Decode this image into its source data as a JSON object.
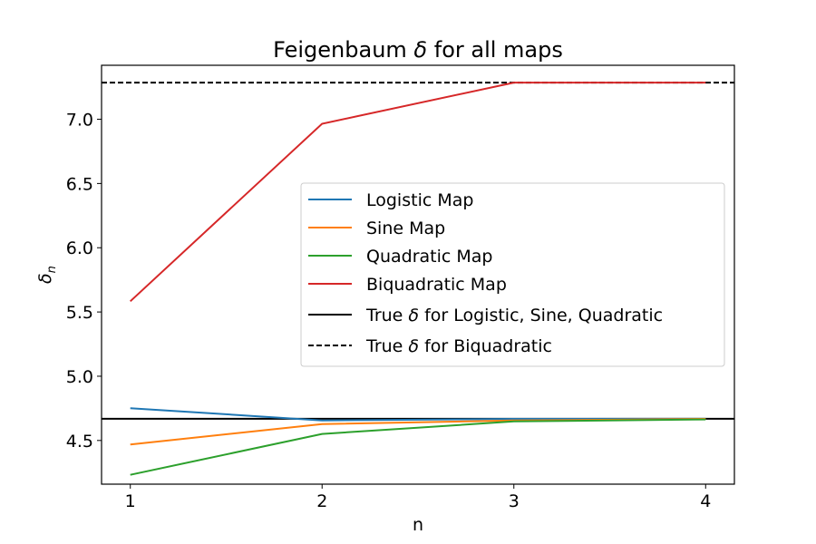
{
  "chart_data": {
    "type": "line",
    "title_pre": "Feigenbaum ",
    "title_sym": "δ",
    "title_post": " for all maps",
    "xlabel": "n",
    "ylabel_sym": "δ",
    "ylabel_sub": "n",
    "xlim": [
      0.85,
      4.15
    ],
    "ylim": [
      4.16,
      7.42
    ],
    "x_ticks": [
      1,
      2,
      3,
      4
    ],
    "x_tick_labels": [
      "1",
      "2",
      "3",
      "4"
    ],
    "y_ticks": [
      4.5,
      5.0,
      5.5,
      6.0,
      6.5,
      7.0
    ],
    "y_tick_labels": [
      "4.5",
      "5.0",
      "5.5",
      "6.0",
      "6.5",
      "7.0"
    ],
    "grid": false,
    "legend_position": "center-right",
    "x": [
      1,
      2,
      3,
      4
    ],
    "series": [
      {
        "name": "Logistic Map",
        "color": "#1f77b4",
        "values": [
          4.751,
          4.656,
          4.668,
          4.669
        ]
      },
      {
        "name": "Sine Map",
        "color": "#ff7f0e",
        "values": [
          4.469,
          4.627,
          4.655,
          4.668
        ]
      },
      {
        "name": "Quadratic Map",
        "color": "#2ca02c",
        "values": [
          4.233,
          4.551,
          4.648,
          4.664
        ]
      },
      {
        "name": "Biquadratic Map",
        "color": "#d62728",
        "values": [
          5.583,
          6.965,
          7.285,
          7.285
        ]
      }
    ],
    "reference_lines": [
      {
        "legend_pre": "True ",
        "legend_sym": "δ",
        "legend_post": " for Logistic, Sine, Quadratic",
        "value": 4.669,
        "color": "#000000",
        "style": "solid"
      },
      {
        "legend_pre": "True ",
        "legend_sym": "δ",
        "legend_post": " for Biquadratic",
        "value": 7.285,
        "color": "#000000",
        "style": "dashed"
      }
    ]
  }
}
